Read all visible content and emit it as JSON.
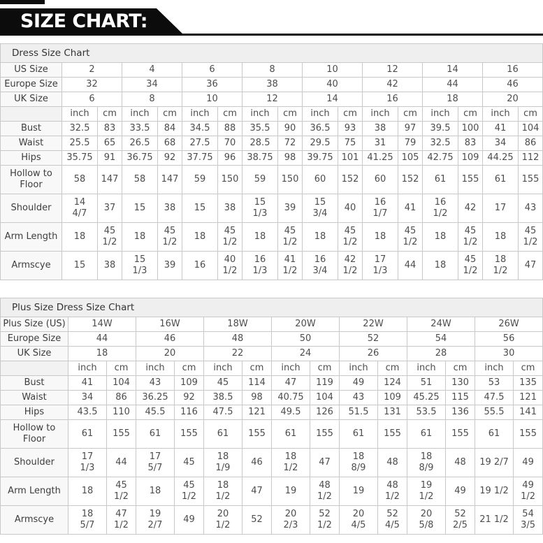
{
  "banner": {
    "title": "SIZE CHART:"
  },
  "units": {
    "inch": "inch",
    "cm": "cm"
  },
  "colors": {
    "banner_bg": "#0c0c0c",
    "banner_text": "#ffffff",
    "table_border": "#c8c8c8",
    "title_band_bg": "#efefef",
    "cell_text": "#4d4d4d"
  },
  "tables": [
    {
      "title": "Dress Size Chart",
      "size_rows": [
        {
          "label": "US Size",
          "values": [
            "2",
            "4",
            "6",
            "8",
            "10",
            "12",
            "14",
            "16"
          ]
        },
        {
          "label": "Europe Size",
          "values": [
            "32",
            "34",
            "36",
            "38",
            "40",
            "42",
            "44",
            "46"
          ]
        },
        {
          "label": "UK Size",
          "values": [
            "6",
            "8",
            "10",
            "12",
            "14",
            "16",
            "18",
            "20"
          ]
        }
      ],
      "measure_rows": [
        {
          "label": "Bust",
          "values": [
            "32.5",
            "83",
            "33.5",
            "84",
            "34.5",
            "88",
            "35.5",
            "90",
            "36.5",
            "93",
            "38",
            "97",
            "39.5",
            "100",
            "41",
            "104"
          ]
        },
        {
          "label": "Waist",
          "values": [
            "25.5",
            "65",
            "26.5",
            "68",
            "27.5",
            "70",
            "28.5",
            "72",
            "29.5",
            "75",
            "31",
            "79",
            "32.5",
            "83",
            "34",
            "86"
          ]
        },
        {
          "label": "Hips",
          "values": [
            "35.75",
            "91",
            "36.75",
            "92",
            "37.75",
            "96",
            "38.75",
            "98",
            "39.75",
            "101",
            "41.25",
            "105",
            "42.75",
            "109",
            "44.25",
            "112"
          ]
        },
        {
          "label": "Hollow to Floor",
          "values": [
            "58",
            "147",
            "58",
            "147",
            "59",
            "150",
            "59",
            "150",
            "60",
            "152",
            "60",
            "152",
            "61",
            "155",
            "61",
            "155"
          ]
        },
        {
          "label": "Shoulder",
          "values": [
            "14 4/7",
            "37",
            "15",
            "38",
            "15",
            "38",
            "15 1/3",
            "39",
            "15 3/4",
            "40",
            "16 1/7",
            "41",
            "16 1/2",
            "42",
            "17",
            "43"
          ]
        },
        {
          "label": "Arm Length",
          "values": [
            "18",
            "45 1/2",
            "18",
            "45 1/2",
            "18",
            "45 1/2",
            "18",
            "45 1/2",
            "18",
            "45 1/2",
            "18",
            "45 1/2",
            "18",
            "45 1/2",
            "18",
            "45 1/2"
          ]
        },
        {
          "label": "Armscye",
          "values": [
            "15",
            "38",
            "15 1/3",
            "39",
            "16",
            "40 1/2",
            "16 1/3",
            "41 1/2",
            "16 3/4",
            "42 1/2",
            "17 1/3",
            "44",
            "18",
            "45 1/2",
            "18 1/2",
            "47"
          ]
        }
      ]
    },
    {
      "title": "Plus Size Dress Size Chart",
      "size_rows": [
        {
          "label": "Plus Size (US)",
          "values": [
            "14W",
            "16W",
            "18W",
            "20W",
            "22W",
            "24W",
            "26W"
          ]
        },
        {
          "label": "Europe Size",
          "values": [
            "44",
            "46",
            "48",
            "50",
            "52",
            "54",
            "56"
          ]
        },
        {
          "label": "UK Size",
          "values": [
            "18",
            "20",
            "22",
            "24",
            "26",
            "28",
            "30"
          ]
        }
      ],
      "measure_rows": [
        {
          "label": "Bust",
          "values": [
            "41",
            "104",
            "43",
            "109",
            "45",
            "114",
            "47",
            "119",
            "49",
            "124",
            "51",
            "130",
            "53",
            "135"
          ]
        },
        {
          "label": "Waist",
          "values": [
            "34",
            "86",
            "36.25",
            "92",
            "38.5",
            "98",
            "40.75",
            "104",
            "43",
            "109",
            "45.25",
            "115",
            "47.5",
            "121"
          ]
        },
        {
          "label": "Hips",
          "values": [
            "43.5",
            "110",
            "45.5",
            "116",
            "47.5",
            "121",
            "49.5",
            "126",
            "51.5",
            "131",
            "53.5",
            "136",
            "55.5",
            "141"
          ]
        },
        {
          "label": "Hollow to Floor",
          "values": [
            "61",
            "155",
            "61",
            "155",
            "61",
            "155",
            "61",
            "155",
            "61",
            "155",
            "61",
            "155",
            "61",
            "155"
          ]
        },
        {
          "label": "Shoulder",
          "values": [
            "17 1/3",
            "44",
            "17 5/7",
            "45",
            "18 1/9",
            "46",
            "18 1/2",
            "47",
            "18 8/9",
            "48",
            "18 8/9",
            "48",
            "19 2/7",
            "49"
          ]
        },
        {
          "label": "Arm Length",
          "values": [
            "18",
            "45 1/2",
            "18",
            "45 1/2",
            "18 1/2",
            "47",
            "19",
            "48 1/2",
            "19",
            "48 1/2",
            "19 1/2",
            "49",
            "19 1/2",
            "49 1/2"
          ]
        },
        {
          "label": "Armscye",
          "values": [
            "18 5/7",
            "47 1/2",
            "19 2/7",
            "49",
            "20 1/2",
            "52",
            "20 2/3",
            "52 1/2",
            "20 4/5",
            "52 4/5",
            "20 5/8",
            "52 2/5",
            "21 1/2",
            "54 3/5"
          ]
        }
      ]
    }
  ]
}
